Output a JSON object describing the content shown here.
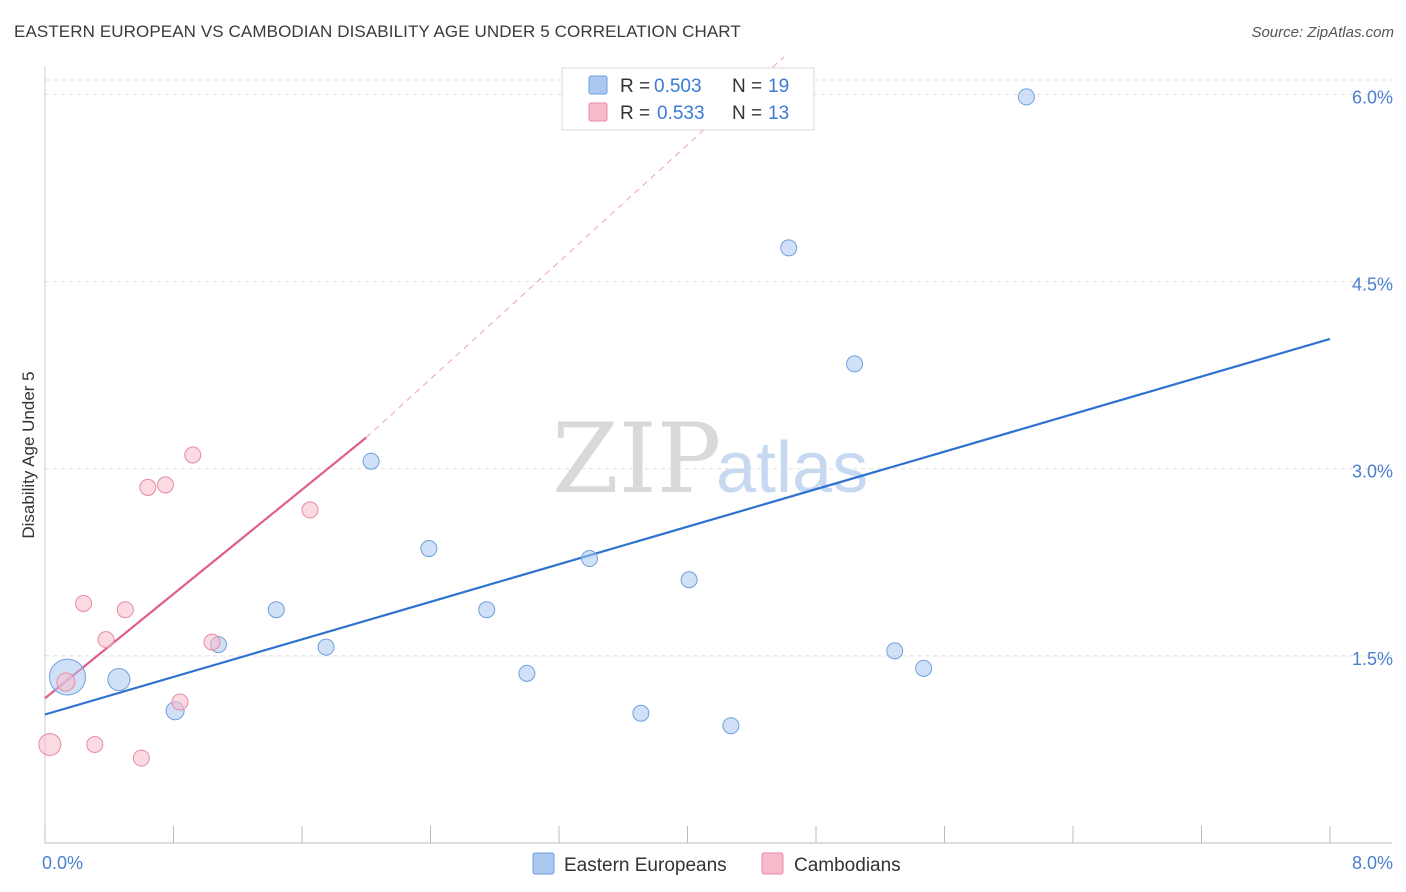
{
  "title": "EASTERN EUROPEAN VS CAMBODIAN DISABILITY AGE UNDER 5 CORRELATION CHART",
  "source": "Source: ZipAtlas.com",
  "watermark": {
    "zip": "ZIP",
    "atlas": "atlas"
  },
  "chart_data": {
    "type": "scatter",
    "xlabel": "",
    "ylabel": "Disability Age Under 5",
    "xlim": [
      0,
      8
    ],
    "ylim": [
      0,
      6.3
    ],
    "x_tick_labels": {
      "min": "0.0%",
      "max": "8.0%"
    },
    "y_ticks": [
      1.5,
      3.0,
      4.5,
      6.0
    ],
    "y_tick_labels": [
      "1.5%",
      "3.0%",
      "4.5%",
      "6.0%"
    ],
    "legend": [
      {
        "r_label": "R =",
        "r_value": "0.503",
        "n_label": "N =",
        "n_value": "19",
        "color": "#aac8f0"
      },
      {
        "r_label": "R =",
        "r_value": "0.533",
        "n_label": "N =",
        "n_value": "13",
        "color": "#f7bccb"
      }
    ],
    "series": [
      {
        "name": "Eastern Europeans",
        "color": "#aac8f0",
        "stroke": "#6f9fdc",
        "line_color": "#2f72cf",
        "trend": {
          "x0": 0.0,
          "y0": 1.03,
          "x1": 8.0,
          "y1": 4.04
        },
        "points": [
          {
            "x": 0.14,
            "y": 1.33,
            "size": 18
          },
          {
            "x": 0.46,
            "y": 1.31,
            "size": 11
          },
          {
            "x": 0.81,
            "y": 1.06,
            "size": 9
          },
          {
            "x": 1.08,
            "y": 1.59,
            "size": 8
          },
          {
            "x": 1.44,
            "y": 1.87,
            "size": 8
          },
          {
            "x": 1.75,
            "y": 1.57,
            "size": 8
          },
          {
            "x": 2.03,
            "y": 3.06,
            "size": 8
          },
          {
            "x": 2.39,
            "y": 2.36,
            "size": 8
          },
          {
            "x": 2.75,
            "y": 1.87,
            "size": 8
          },
          {
            "x": 3.0,
            "y": 1.36,
            "size": 8
          },
          {
            "x": 3.39,
            "y": 2.28,
            "size": 8
          },
          {
            "x": 3.71,
            "y": 1.04,
            "size": 8
          },
          {
            "x": 4.01,
            "y": 2.11,
            "size": 8
          },
          {
            "x": 4.27,
            "y": 0.94,
            "size": 8
          },
          {
            "x": 4.63,
            "y": 4.77,
            "size": 8
          },
          {
            "x": 5.04,
            "y": 3.84,
            "size": 8
          },
          {
            "x": 5.29,
            "y": 1.54,
            "size": 8
          },
          {
            "x": 5.47,
            "y": 1.4,
            "size": 8
          },
          {
            "x": 6.11,
            "y": 5.98,
            "size": 8
          }
        ]
      },
      {
        "name": "Cambodians",
        "color": "#f7bccb",
        "stroke": "#e88aa5",
        "line_color": "#e05e88",
        "trend": {
          "x0": 0.0,
          "y0": 1.16,
          "x1": 2.0,
          "y1": 3.25
        },
        "trend_extension": {
          "x0": 2.0,
          "y0": 3.25,
          "x1": 4.6,
          "y1": 6.3
        },
        "points": [
          {
            "x": 0.03,
            "y": 0.79,
            "size": 11
          },
          {
            "x": 0.13,
            "y": 1.29,
            "size": 9
          },
          {
            "x": 0.24,
            "y": 1.92,
            "size": 8
          },
          {
            "x": 0.31,
            "y": 0.79,
            "size": 8
          },
          {
            "x": 0.38,
            "y": 1.63,
            "size": 8
          },
          {
            "x": 0.5,
            "y": 1.87,
            "size": 8
          },
          {
            "x": 0.6,
            "y": 0.68,
            "size": 8
          },
          {
            "x": 0.64,
            "y": 2.85,
            "size": 8
          },
          {
            "x": 0.75,
            "y": 2.87,
            "size": 8
          },
          {
            "x": 0.84,
            "y": 1.13,
            "size": 8
          },
          {
            "x": 0.92,
            "y": 3.11,
            "size": 8
          },
          {
            "x": 1.04,
            "y": 1.61,
            "size": 8
          },
          {
            "x": 1.65,
            "y": 2.67,
            "size": 8
          }
        ]
      }
    ]
  }
}
